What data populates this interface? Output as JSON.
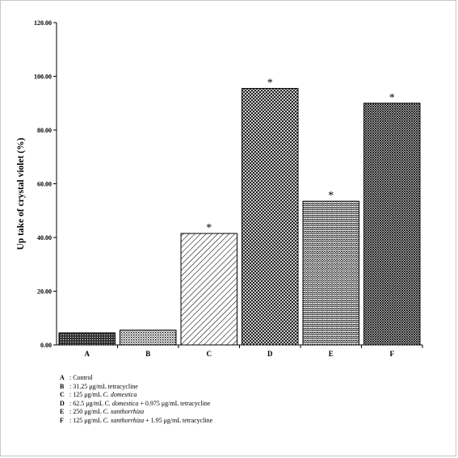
{
  "chart_data": {
    "type": "bar",
    "categories": [
      "A",
      "B",
      "C",
      "D",
      "E",
      "F"
    ],
    "values": [
      4.5,
      5.5,
      41.5,
      95.5,
      53.5,
      90.0
    ],
    "significance": [
      "",
      "",
      "*",
      "*",
      "*",
      "*"
    ],
    "title": "",
    "xlabel": "",
    "ylabel": "Up take of crystal violet (%)",
    "ylim": [
      0,
      120
    ],
    "yticks": [
      "0.00",
      "20.00",
      "40.00",
      "60.00",
      "80.00",
      "100.00",
      "120.00"
    ],
    "grid": false,
    "patterns": [
      "dense-dots",
      "fine-dots",
      "diagonal-lines",
      "cross-hatch",
      "wave",
      "fine-hatch"
    ]
  },
  "legend": [
    {
      "key": "A",
      "text": ": Control"
    },
    {
      "key": "B",
      "text": ": 31.25 μg/mL tetracycline"
    },
    {
      "key": "C",
      "text": ": 125 μg/mL C. domestica"
    },
    {
      "key": "D",
      "text": ": 62.5 μg/mL C. domestica + 0.975 μg/mL tetracycline"
    },
    {
      "key": "E",
      "text": ": 250 μg/mL C. xanthorrhiza"
    },
    {
      "key": "F",
      "text": ": 125 μg/mL C. xanthorrhiza + 1.95 μg/mL tetracycline"
    }
  ]
}
